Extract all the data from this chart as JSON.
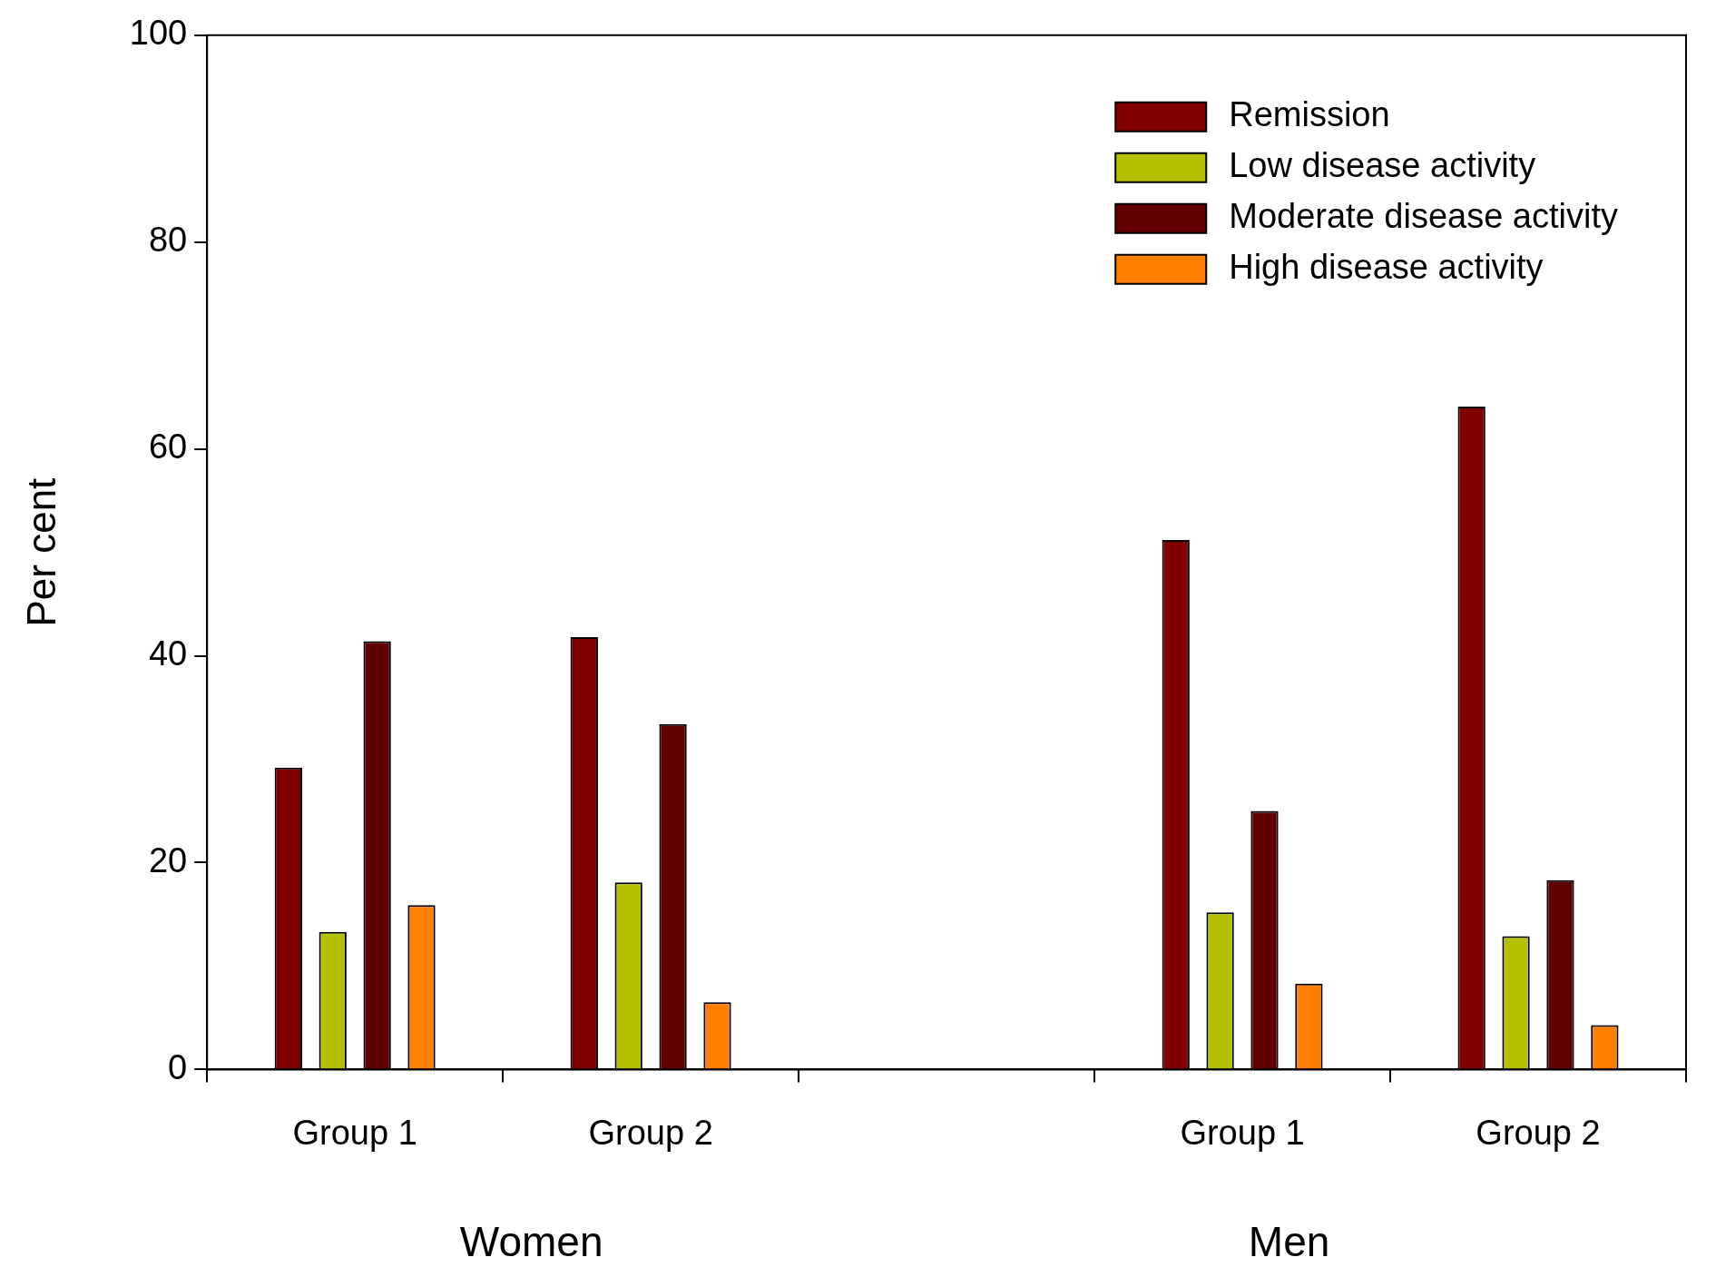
{
  "chart_data": {
    "type": "bar",
    "ylabel": "Per cent",
    "categories": [
      "Group 1",
      "Group 2",
      null,
      "Group 1",
      "Group 2"
    ],
    "series": [
      {
        "name": "Remission",
        "color": "#800000",
        "values": [
          29.2,
          41.8,
          null,
          51.2,
          64.1
        ]
      },
      {
        "name": "Low disease activity",
        "color": "#b5c000",
        "values": [
          13.3,
          18.1,
          null,
          15.2,
          12.9
        ]
      },
      {
        "name": "Moderate disease activity",
        "color": "#600000",
        "values": [
          41.4,
          33.4,
          null,
          25.0,
          18.3
        ]
      },
      {
        "name": "High disease activity",
        "color": "#ff8000",
        "values": [
          15.9,
          6.5,
          null,
          8.3,
          4.3
        ]
      }
    ],
    "ylim": [
      0,
      100
    ],
    "yticks": [
      0,
      20,
      40,
      60,
      80,
      100
    ],
    "legend": "top right",
    "annotations": [
      "Women",
      "Men"
    ]
  }
}
